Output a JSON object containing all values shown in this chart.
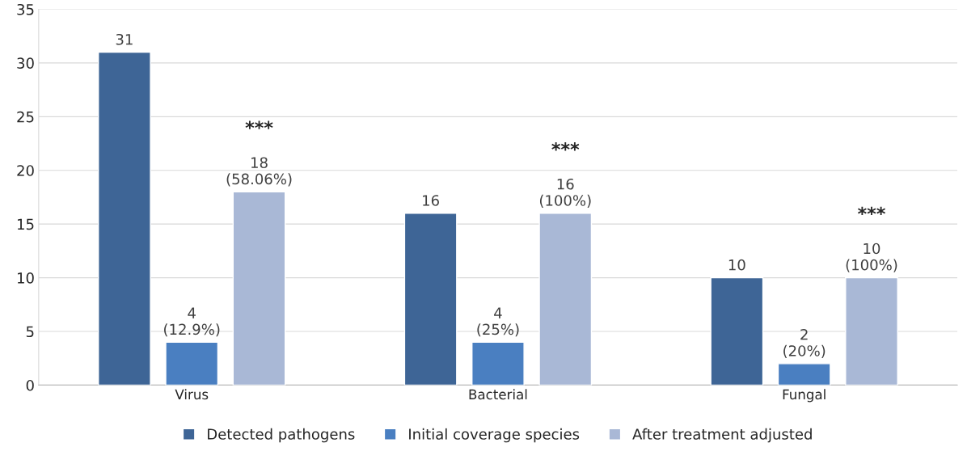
{
  "chart_data": {
    "type": "bar",
    "categories": [
      "Virus",
      "Bacterial",
      "Fungal"
    ],
    "series": [
      {
        "name": "Detected pathogens",
        "color": "#3e6596",
        "values": [
          31,
          16,
          10
        ],
        "value_labels": [
          "31",
          "16",
          "10"
        ]
      },
      {
        "name": "Initial coverage species",
        "color": "#4a7fc1",
        "values": [
          4,
          4,
          2
        ],
        "value_labels": [
          "4\n(12.9%)",
          "4\n(25%)",
          "2\n(20%)"
        ]
      },
      {
        "name": "After treatment adjusted",
        "color": "#a9b8d6",
        "values": [
          18,
          16,
          10
        ],
        "value_labels": [
          "18\n(58.06%)",
          "16\n(100%)",
          "10\n(100%)"
        ]
      }
    ],
    "annotations": [
      "***",
      "***",
      "***"
    ],
    "ylim": [
      0,
      35
    ],
    "yticks": [
      0,
      5,
      10,
      15,
      20,
      25,
      30,
      35
    ],
    "grid": "y",
    "legend": "bottom"
  }
}
